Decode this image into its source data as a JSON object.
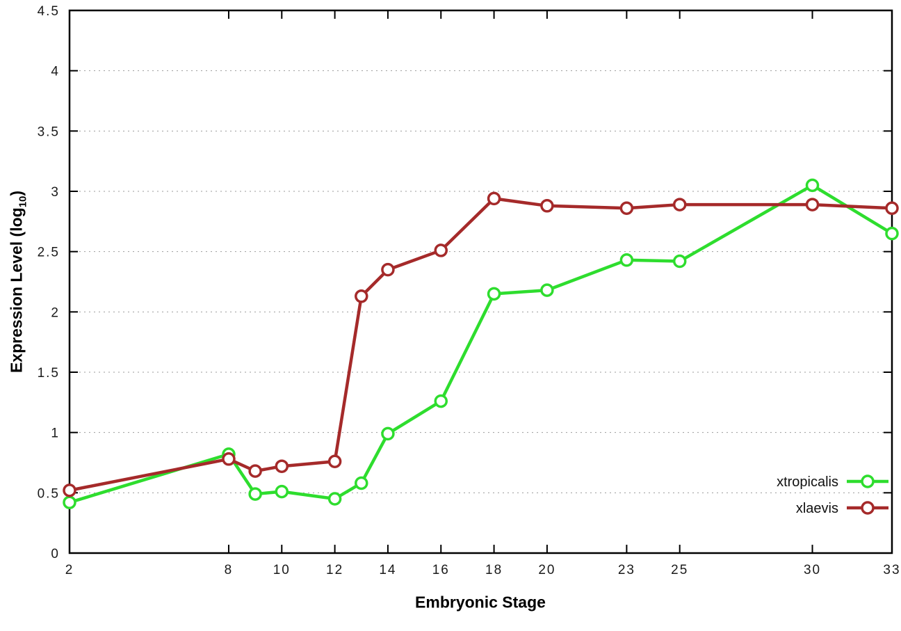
{
  "chart_data": {
    "type": "line",
    "title": "",
    "xlabel": "Embryonic Stage",
    "ylabel": "Expression Level (log10)",
    "ylabel_parts": {
      "prefix": "Expression Level (log",
      "sub": "10",
      "suffix": ")"
    },
    "xlim": [
      2,
      33
    ],
    "ylim": [
      0,
      4.5
    ],
    "xticks": [
      2,
      8,
      10,
      12,
      14,
      16,
      18,
      20,
      23,
      25,
      30,
      33
    ],
    "ytick_values": [
      0,
      0.5,
      1,
      1.5,
      2,
      2.5,
      3,
      3.5,
      4,
      4.5
    ],
    "ytick_labels": [
      "0",
      "0.5",
      "1",
      "1.5",
      "2",
      "2.5",
      "3",
      "3.5",
      "4",
      "4.5"
    ],
    "grid": "horizontal-dotted",
    "legend_position": "inside-bottom-right",
    "x": [
      2,
      8,
      9,
      10,
      12,
      13,
      14,
      16,
      18,
      20,
      23,
      25,
      30,
      33
    ],
    "series": [
      {
        "name": "xtropicalis",
        "color": "#2edd2e",
        "values": [
          0.42,
          0.82,
          0.49,
          0.51,
          0.45,
          0.58,
          0.99,
          1.26,
          2.15,
          2.18,
          2.43,
          2.42,
          3.05,
          2.65
        ]
      },
      {
        "name": "xlaevis",
        "color": "#a52a2a",
        "values": [
          0.52,
          0.78,
          0.68,
          0.72,
          0.76,
          2.13,
          2.35,
          2.51,
          2.94,
          2.88,
          2.86,
          2.89,
          2.89,
          2.86
        ]
      }
    ]
  }
}
